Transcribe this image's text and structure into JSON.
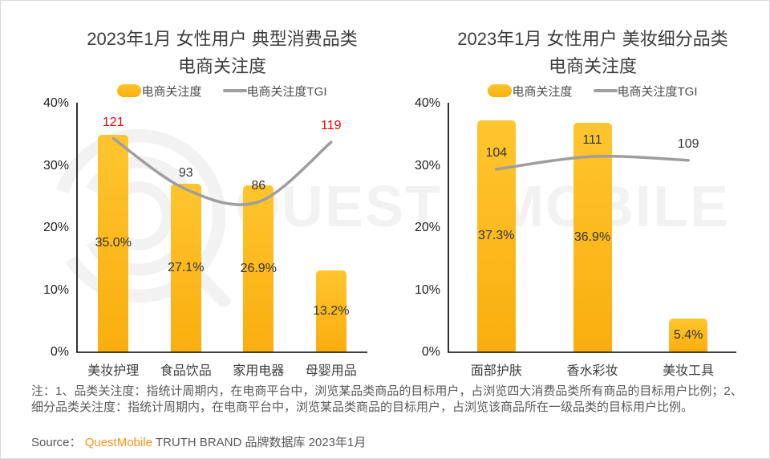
{
  "watermark": {
    "text": "QUEST MOBILE",
    "color": "#f2f2f2"
  },
  "colors": {
    "bar_gradient_top": "#FFC52E",
    "bar_gradient_bottom": "#F9AE0E",
    "tgi_line": "#9E9E9E",
    "axis": "#000000",
    "highlight_label": "#FF0000",
    "label_dark": "#333333",
    "note_text": "#595959",
    "brand_orange": "#F7941D"
  },
  "chart_data": [
    {
      "type": "bar",
      "title_line1": "2023年1月 女性用户 典型消费品类",
      "title_line2": "电商关注度",
      "categories": [
        "美妆护理",
        "食品饮品",
        "家用电器",
        "母婴用品"
      ],
      "series": [
        {
          "name": "电商关注度",
          "type": "bar",
          "unit": "%",
          "values": [
            35.0,
            27.1,
            26.9,
            13.2
          ],
          "labels": [
            "35.0%",
            "27.1%",
            "26.9%",
            "13.2%"
          ]
        },
        {
          "name": "电商关注度TGI",
          "type": "line",
          "values": [
            121,
            93,
            86,
            119
          ],
          "labels": [
            "121",
            "93",
            "86",
            "119"
          ],
          "highlighted": [
            true,
            false,
            false,
            true
          ]
        }
      ],
      "y_axis": {
        "min": 0,
        "max": 40,
        "ticks": [
          {
            "label": "0%",
            "value": 0
          },
          {
            "label": "10%",
            "value": 10
          },
          {
            "label": "20%",
            "value": 20
          },
          {
            "label": "30%",
            "value": 30
          },
          {
            "label": "40%",
            "value": 40
          }
        ]
      },
      "legend_position": "top"
    },
    {
      "type": "bar",
      "title_line1": "2023年1月 女性用户 美妆细分品类",
      "title_line2": "电商关注度",
      "categories": [
        "面部护肤",
        "香水彩妆",
        "美妆工具"
      ],
      "series": [
        {
          "name": "电商关注度",
          "type": "bar",
          "unit": "%",
          "values": [
            37.3,
            36.9,
            5.4
          ],
          "labels": [
            "37.3%",
            "36.9%",
            "5.4%"
          ]
        },
        {
          "name": "电商关注度TGI",
          "type": "line",
          "values": [
            104,
            111,
            109
          ],
          "labels": [
            "104",
            "111",
            "109"
          ],
          "highlighted": [
            false,
            false,
            false
          ]
        }
      ],
      "y_axis": {
        "min": 0,
        "max": 40,
        "ticks": [
          {
            "label": "0%",
            "value": 0
          },
          {
            "label": "10%",
            "value": 10
          },
          {
            "label": "20%",
            "value": 20
          },
          {
            "label": "30%",
            "value": 30
          },
          {
            "label": "40%",
            "value": 40
          }
        ]
      },
      "legend_position": "top"
    }
  ],
  "notes": {
    "text": "注：1、品类关注度：指统计周期内，在电商平台中，浏览某品类商品的目标用户，占浏览四大消费品类所有商品的目标用户比例；2、细分品类关注度：指统计周期内，在电商平台中，浏览某品类商品的目标用户，占浏览该商品所在一级品类的目标用户比例。",
    "source_prefix": "Source： ",
    "source_brand": "QuestMobile",
    "source_suffix": " TRUTH BRAND 品牌数据库 2023年1月"
  }
}
